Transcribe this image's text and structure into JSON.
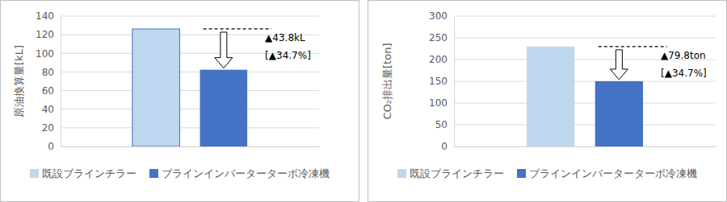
{
  "chart_data": [
    {
      "type": "bar",
      "y_label": "原油換算量[kL]",
      "categories": [
        null
      ],
      "series": [
        {
          "name": "既設ブラインチラー",
          "color": "#bdd7ee",
          "values": [
            126.2
          ]
        },
        {
          "name": "ブラインインバーターターボ冷凍機",
          "color": "#4472c4",
          "values": [
            82.4
          ]
        }
      ],
      "ylim": [
        0,
        140
      ],
      "yticks": [
        0,
        20,
        40,
        60,
        80,
        100,
        120,
        140
      ],
      "grid": true,
      "legend": "bottom",
      "annotations": [
        "▲43.8kL",
        "[▲34.7%]"
      ]
    },
    {
      "type": "bar",
      "y_label": "CO₂排出量[ton]",
      "categories": [
        null
      ],
      "series": [
        {
          "name": "既設ブラインチラー",
          "color": "#bdd7ee",
          "values": [
            229.9
          ]
        },
        {
          "name": "ブラインインバーターターボ冷凍機",
          "color": "#4472c4",
          "values": [
            150.1
          ]
        }
      ],
      "ylim": [
        0,
        300
      ],
      "yticks": [
        0,
        50,
        100,
        150,
        200,
        250,
        300
      ],
      "grid": true,
      "legend": "bottom",
      "annotations": [
        "▲79.8ton",
        "[▲34.7%]"
      ]
    }
  ]
}
